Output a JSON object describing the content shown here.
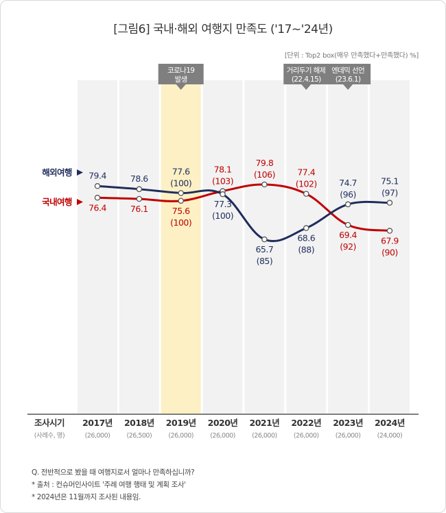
{
  "title": "[그림6] 국내·해외 여행지 만족도 ('17~'24년)",
  "unit_note": "[단위 : Top2 box(매우 만족했다+만족했다) %]",
  "chart_data": {
    "type": "line",
    "title": "[그림6] 국내·해외 여행지 만족도 ('17~'24년)",
    "x_header": "조사시기",
    "x_subheader": "(사례수, 명)",
    "categories": [
      "2017년",
      "2018년",
      "2019년",
      "2020년",
      "2021년",
      "2022년",
      "2023년",
      "2024년"
    ],
    "sample_sizes": [
      "(26,000)",
      "(26,500)",
      "(26,000)",
      "(26,000)",
      "(26,000)",
      "(26,000)",
      "(26,000)",
      "(24,000)"
    ],
    "highlight_column": "2019년",
    "series": [
      {
        "name": "해외여행",
        "color": "#1f2d5c",
        "values": [
          79.4,
          78.6,
          77.6,
          77.3,
          65.7,
          68.6,
          74.7,
          75.1
        ],
        "labels": [
          "79.4",
          "78.6",
          "77.6",
          "77.3",
          "65.7",
          "68.6",
          "74.7",
          "75.1"
        ],
        "index_labels": [
          "",
          "",
          "(100)",
          "(100)",
          "(85)",
          "(88)",
          "(96)",
          "(97)"
        ]
      },
      {
        "name": "국내여행",
        "color": "#c00000",
        "values": [
          76.4,
          76.1,
          75.6,
          78.1,
          79.8,
          77.4,
          69.4,
          67.9
        ],
        "labels": [
          "76.4",
          "76.1",
          "75.6",
          "78.1",
          "79.8",
          "77.4",
          "69.4",
          "67.9"
        ],
        "index_labels": [
          "",
          "",
          "(100)",
          "(103)",
          "(106)",
          "(102)",
          "(92)",
          "(90)"
        ]
      }
    ],
    "annotations": [
      {
        "category": "2019년",
        "lines": [
          "코로나19",
          "발생"
        ]
      },
      {
        "category": "2022년",
        "lines": [
          "거리두기 해제",
          "(22.4.15)"
        ]
      },
      {
        "category": "2023년",
        "lines": [
          "엔데믹 선언",
          "(23.6.1)"
        ]
      }
    ]
  },
  "notes": [
    "Q. 전반적으로 봤을 때 여행지로서 얼마나 만족하십니까?",
    "* 출처 : 컨슈머인사이트 '주례 여행 행태 및 계획 조사'",
    "* 2024년은 11월까지 조사된 내용임."
  ]
}
